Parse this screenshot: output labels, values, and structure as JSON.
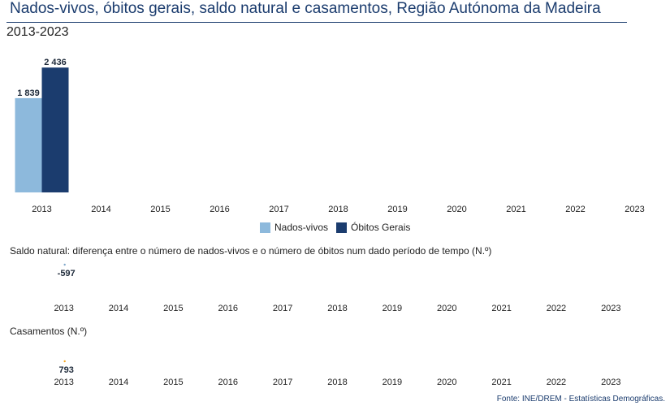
{
  "header": {
    "title": "Nados-vivos, óbitos gerais, saldo natural e casamentos, Região Autónoma da Madeira",
    "period": "2013-2023"
  },
  "legend": {
    "births_label": "Nados-vivos",
    "deaths_label": "Óbitos Gerais"
  },
  "sections": {
    "saldo_title": "Saldo natural: diferença entre o número de nados-vivos e o número de óbitos num dado período de tempo (N.º)",
    "casamentos_title": "Casamentos (N.º)"
  },
  "source": "Fonte: INE/DREM - Estatísticas Demográficas.",
  "colors": {
    "births": "#8db9dc",
    "deaths": "#1b3c6e",
    "saldo_marker": "#7fa7c9",
    "casamentos_marker": "#f5a623"
  },
  "chart_data": [
    {
      "type": "bar",
      "categories": [
        "2013",
        "2014",
        "2015",
        "2016",
        "2017",
        "2018",
        "2019",
        "2020",
        "2021",
        "2022",
        "2023"
      ],
      "series": [
        {
          "name": "Nados-vivos",
          "values": [
            1839,
            null,
            null,
            null,
            null,
            null,
            null,
            null,
            null,
            null,
            null
          ],
          "labels": [
            "1 839"
          ]
        },
        {
          "name": "Óbitos Gerais",
          "values": [
            2436,
            null,
            null,
            null,
            null,
            null,
            null,
            null,
            null,
            null,
            null
          ],
          "labels": [
            "2 436"
          ]
        }
      ],
      "ylim": [
        0,
        3200
      ],
      "legend": "bottom-center",
      "grid": false
    },
    {
      "type": "scatter",
      "title": "Saldo natural: diferença entre o número de nados-vivos e o número de óbitos num dado período de tempo (N.º)",
      "categories": [
        "2013",
        "2014",
        "2015",
        "2016",
        "2017",
        "2018",
        "2019",
        "2020",
        "2021",
        "2022",
        "2023"
      ],
      "values": [
        -597,
        null,
        null,
        null,
        null,
        null,
        null,
        null,
        null,
        null,
        null
      ],
      "labels": [
        "-597"
      ]
    },
    {
      "type": "scatter",
      "title": "Casamentos (N.º)",
      "categories": [
        "2013",
        "2014",
        "2015",
        "2016",
        "2017",
        "2018",
        "2019",
        "2020",
        "2021",
        "2022",
        "2023"
      ],
      "values": [
        793,
        null,
        null,
        null,
        null,
        null,
        null,
        null,
        null,
        null,
        null
      ],
      "labels": [
        "793"
      ]
    }
  ]
}
